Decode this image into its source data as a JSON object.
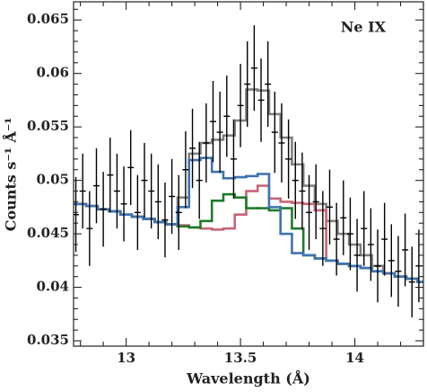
{
  "chart_data": {
    "type": "step",
    "annotation": "Ne IX",
    "xlabel": "Wavelength (Å)",
    "ylabel": "Counts s⁻¹ Å⁻¹",
    "xlim": [
      12.77,
      14.3
    ],
    "ylim": [
      0.0345,
      0.0667
    ],
    "xticks": [
      13,
      13.5,
      14
    ],
    "yticks": [
      0.035,
      0.04,
      0.045,
      0.05,
      0.055,
      0.06,
      0.065
    ],
    "xminorticks": [
      12.8,
      12.9,
      13.1,
      13.2,
      13.3,
      13.4,
      13.6,
      13.7,
      13.8,
      13.9,
      14.1,
      14.2,
      14.3
    ],
    "yminorticks": [
      0.036,
      0.037,
      0.038,
      0.039,
      0.041,
      0.042,
      0.043,
      0.044,
      0.046,
      0.047,
      0.048,
      0.049,
      0.051,
      0.052,
      0.053,
      0.054,
      0.056,
      0.057,
      0.058,
      0.059,
      0.061,
      0.062,
      0.063,
      0.064,
      0.066
    ],
    "x": [
      12.8,
      12.85,
      12.9,
      12.95,
      13.0,
      13.05,
      13.1,
      13.15,
      13.2,
      13.25,
      13.3,
      13.35,
      13.4,
      13.45,
      13.5,
      13.55,
      13.6,
      13.65,
      13.7,
      13.75,
      13.8,
      13.85,
      13.9,
      13.95,
      14.0,
      14.05,
      14.1,
      14.15,
      14.2,
      14.25,
      14.3
    ],
    "series": [
      {
        "color": "#808080",
        "values": [
          0.0478,
          0.0476,
          0.0473,
          0.0471,
          0.0468,
          0.0466,
          0.0464,
          0.0461,
          0.0459,
          0.0484,
          0.0525,
          0.0535,
          0.0538,
          0.0542,
          0.0556,
          0.0585,
          0.0584,
          0.0562,
          0.054,
          0.0515,
          0.0495,
          0.0478,
          0.0462,
          0.045,
          0.044,
          0.043,
          0.042,
          0.0413,
          0.041,
          0.0408,
          0.0405
        ]
      },
      {
        "color": "#c86478",
        "values": [
          0.0478,
          0.0476,
          0.0473,
          0.0471,
          0.0468,
          0.0466,
          0.0464,
          0.0461,
          0.0459,
          0.0458,
          0.0456,
          0.0455,
          0.0454,
          0.0455,
          0.0468,
          0.049,
          0.0495,
          0.0483,
          0.048,
          0.0479,
          0.0478,
          0.0472,
          0.0425,
          0.0422,
          0.042,
          0.0418,
          0.0415,
          0.0413,
          0.041,
          0.0408,
          0.0405
        ]
      },
      {
        "color": "#1e7b2a",
        "values": [
          0.0478,
          0.0476,
          0.0473,
          0.0471,
          0.0468,
          0.0466,
          0.0464,
          0.0461,
          0.0459,
          0.0457,
          0.0456,
          0.0462,
          0.0481,
          0.0487,
          0.0484,
          0.0474,
          0.0474,
          0.0472,
          0.0474,
          0.0455,
          0.043,
          0.0427,
          0.0425,
          0.0422,
          0.042,
          0.0418,
          0.0415,
          0.0413,
          0.041,
          0.0408,
          0.0405
        ]
      },
      {
        "color": "#3f73b0",
        "values": [
          0.0478,
          0.0476,
          0.0473,
          0.0471,
          0.0468,
          0.0466,
          0.0464,
          0.0461,
          0.0459,
          0.0475,
          0.0519,
          0.0521,
          0.0508,
          0.0502,
          0.0503,
          0.0504,
          0.0506,
          0.0475,
          0.045,
          0.0432,
          0.043,
          0.0427,
          0.0425,
          0.0422,
          0.042,
          0.0418,
          0.0415,
          0.0413,
          0.041,
          0.0408,
          0.0405
        ]
      }
    ],
    "points": {
      "color": "#000000",
      "x": [
        12.78,
        12.81,
        12.84,
        12.87,
        12.9,
        12.93,
        12.96,
        12.99,
        13.02,
        13.05,
        13.08,
        13.11,
        13.14,
        13.17,
        13.2,
        13.23,
        13.26,
        13.29,
        13.32,
        13.35,
        13.38,
        13.41,
        13.44,
        13.47,
        13.5,
        13.53,
        13.56,
        13.59,
        13.62,
        13.65,
        13.68,
        13.71,
        13.74,
        13.77,
        13.8,
        13.83,
        13.86,
        13.89,
        13.92,
        13.95,
        13.98,
        14.01,
        14.04,
        14.07,
        14.1,
        14.13,
        14.16,
        14.19,
        14.22,
        14.25,
        14.28
      ],
      "values": [
        0.0468,
        0.049,
        0.0455,
        0.0495,
        0.0473,
        0.0505,
        0.049,
        0.0478,
        0.0512,
        0.047,
        0.05,
        0.049,
        0.048,
        0.0463,
        0.0485,
        0.047,
        0.051,
        0.053,
        0.05,
        0.0535,
        0.0555,
        0.0545,
        0.056,
        0.052,
        0.057,
        0.059,
        0.0605,
        0.0575,
        0.059,
        0.0545,
        0.0535,
        0.052,
        0.05,
        0.049,
        0.047,
        0.048,
        0.0455,
        0.0475,
        0.0445,
        0.0465,
        0.045,
        0.043,
        0.0455,
        0.044,
        0.042,
        0.0445,
        0.0425,
        0.0415,
        0.0435,
        0.0405,
        0.042
      ],
      "errors": [
        0.0035,
        0.0035,
        0.0035,
        0.0035,
        0.0035,
        0.0035,
        0.0035,
        0.0035,
        0.0035,
        0.0035,
        0.0035,
        0.0035,
        0.0035,
        0.0035,
        0.0035,
        0.0035,
        0.0036,
        0.0037,
        0.0036,
        0.0037,
        0.0038,
        0.0038,
        0.0038,
        0.0037,
        0.0039,
        0.004,
        0.004,
        0.0039,
        0.004,
        0.0038,
        0.0037,
        0.0037,
        0.0036,
        0.0036,
        0.0035,
        0.0035,
        0.0035,
        0.0035,
        0.0034,
        0.0035,
        0.0034,
        0.0034,
        0.0035,
        0.0034,
        0.0034,
        0.0034,
        0.0034,
        0.0033,
        0.0034,
        0.0033,
        0.0034
      ]
    }
  }
}
